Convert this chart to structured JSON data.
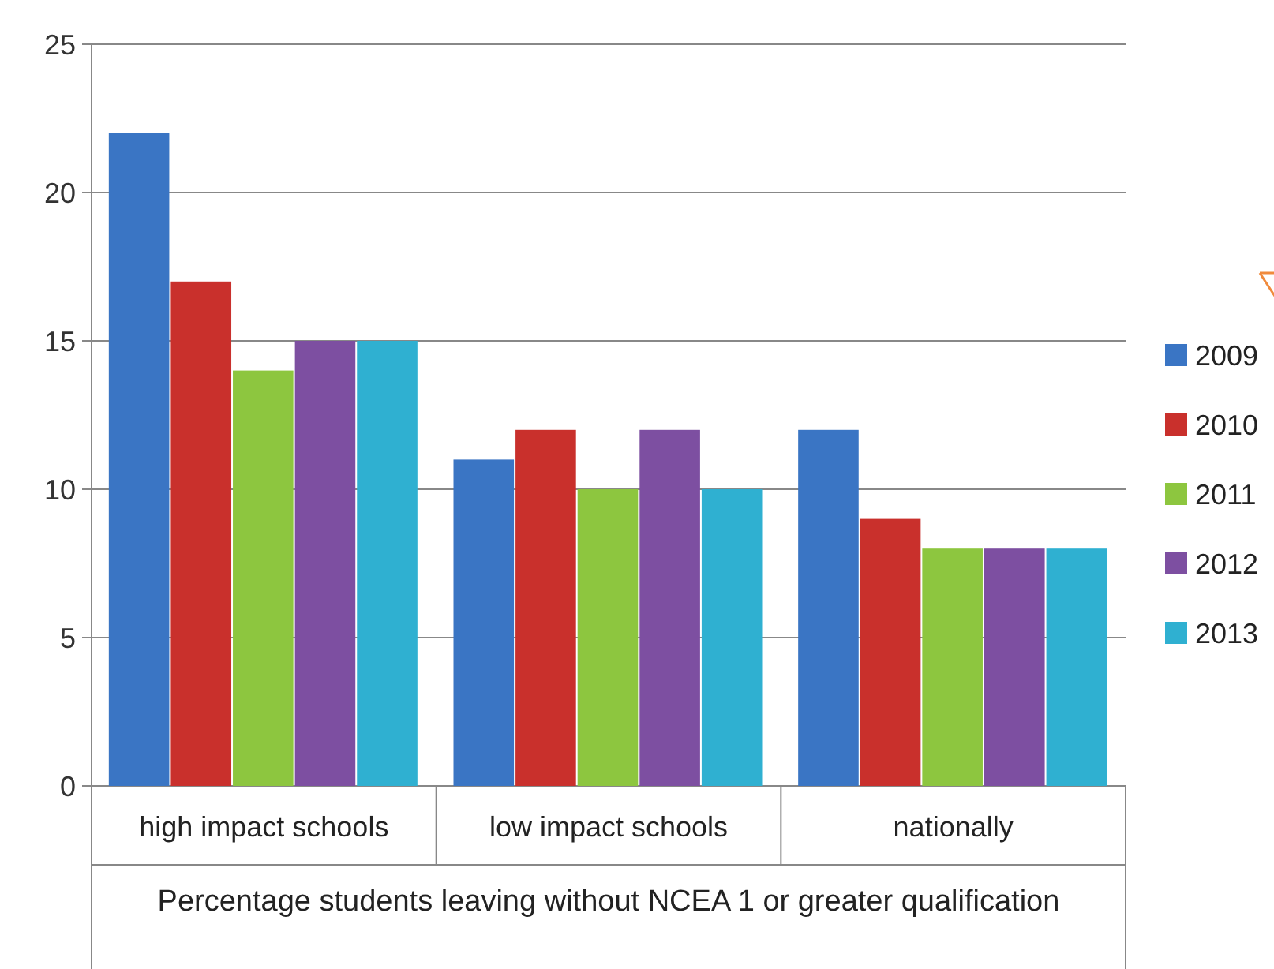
{
  "chart_data": {
    "type": "bar",
    "xlabel": "Percentage students leaving without NCEA 1 or greater qualification",
    "categories": [
      "high impact schools",
      "low impact schools",
      "nationally"
    ],
    "series": [
      {
        "name": "2009",
        "color": "#3a75c4",
        "values": [
          22,
          11,
          12
        ]
      },
      {
        "name": "2010",
        "color": "#c9302c",
        "values": [
          17,
          12,
          9
        ]
      },
      {
        "name": "2011",
        "color": "#8dc63f",
        "values": [
          14,
          10,
          8
        ]
      },
      {
        "name": "2012",
        "color": "#7d4fa1",
        "values": [
          15,
          12,
          8
        ]
      },
      {
        "name": "2013",
        "color": "#2fb0d1",
        "values": [
          15,
          10,
          8
        ]
      }
    ],
    "ylim": [
      0,
      25
    ],
    "yticks": [
      0,
      5,
      10,
      15,
      20,
      25
    ],
    "grid": "y",
    "legend": "right"
  }
}
